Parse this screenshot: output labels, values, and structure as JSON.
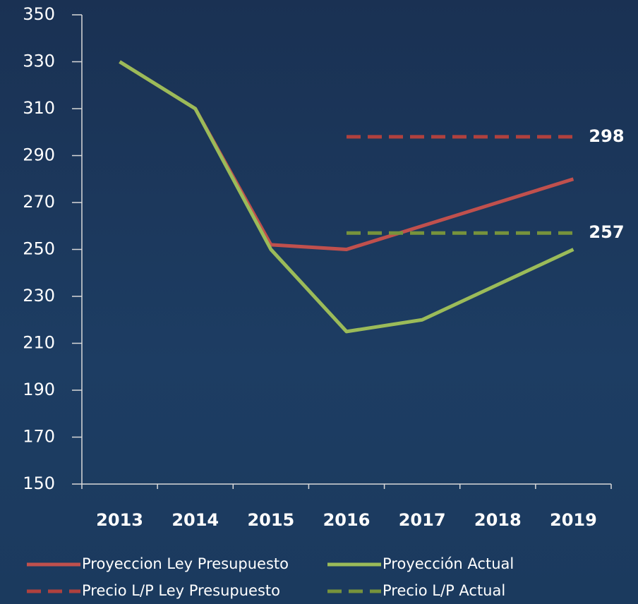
{
  "chart_data": {
    "type": "line",
    "categories": [
      "2013",
      "2014",
      "2015",
      "2016",
      "2017",
      "2018",
      "2019"
    ],
    "series": [
      {
        "name": "Proyeccion Ley Presupuesto",
        "color": "#c0504d",
        "dashed": false,
        "values": [
          330,
          310,
          252,
          250,
          260,
          270,
          280
        ]
      },
      {
        "name": "Proyección Actual",
        "color": "#9bbb59",
        "dashed": false,
        "values": [
          330,
          310,
          250,
          215,
          220,
          235,
          250
        ]
      },
      {
        "name": "Precio L/P Ley Presupuesto",
        "color": "#b0413e",
        "dashed": true,
        "values": [
          null,
          null,
          null,
          298,
          298,
          298,
          298
        ]
      },
      {
        "name": "Precio L/P Actual",
        "color": "#77933c",
        "dashed": true,
        "values": [
          null,
          null,
          null,
          257,
          257,
          257,
          257
        ]
      }
    ],
    "ylim": [
      150,
      350
    ],
    "yticks": [
      150,
      170,
      190,
      210,
      230,
      250,
      270,
      290,
      310,
      330,
      350
    ],
    "grid": false
  }
}
